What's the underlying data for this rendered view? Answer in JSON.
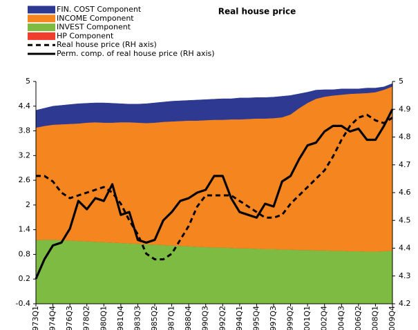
{
  "chart_data": {
    "type": "area",
    "title": "Real house price",
    "categories": [
      "1973Q1",
      null,
      "1974Q4",
      null,
      "1976Q3",
      null,
      "1978Q2",
      null,
      "1980Q1",
      null,
      "1981Q4",
      null,
      "1983Q3",
      null,
      "1985Q2",
      null,
      "1987Q1",
      null,
      "1988Q4",
      null,
      "1990Q3",
      null,
      "1992Q2",
      null,
      "1994Q1",
      null,
      "1995Q4",
      null,
      "1997Q3",
      null,
      "1999Q2",
      null,
      "2001Q1",
      null,
      "2002Q4",
      null,
      "2004Q3",
      null,
      "2006Q2",
      null,
      "2008Q1",
      null,
      "2009Q4"
    ],
    "ylim": [
      -0.4,
      5.0
    ],
    "yticks": [
      -0.4,
      0.2,
      0.8,
      1.4,
      2.0,
      2.6,
      3.2,
      3.8,
      4.4,
      5.0
    ],
    "y2lim": [
      4.2,
      5.0
    ],
    "y2ticks": [
      4.2,
      4.3,
      4.4,
      4.5,
      4.6,
      4.7,
      4.8,
      4.9,
      5.0
    ],
    "series": [
      {
        "name": "FIN. COST Component",
        "color": "#2e3a92",
        "values": [
          0.42,
          0.43,
          0.45,
          0.46,
          0.47,
          0.48,
          0.47,
          0.47,
          0.48,
          0.47,
          0.45,
          0.44,
          0.45,
          0.47,
          0.48,
          0.48,
          0.49,
          0.49,
          0.49,
          0.5,
          0.5,
          0.5,
          0.51,
          0.5,
          0.52,
          0.51,
          0.51,
          0.51,
          0.51,
          0.51,
          0.46,
          0.35,
          0.26,
          0.21,
          0.17,
          0.14,
          0.14,
          0.12,
          0.11,
          0.12,
          0.1,
          0.07,
          0.07
        ]
      },
      {
        "name": "INCOME Component",
        "color": "#f5861f",
        "values": [
          2.73,
          2.76,
          2.79,
          2.81,
          2.83,
          2.85,
          2.88,
          2.9,
          2.9,
          2.91,
          2.93,
          2.94,
          2.94,
          2.94,
          2.96,
          2.99,
          3.01,
          3.03,
          3.05,
          3.06,
          3.08,
          3.1,
          3.1,
          3.12,
          3.13,
          3.14,
          3.16,
          3.17,
          3.18,
          3.21,
          3.28,
          3.44,
          3.57,
          3.68,
          3.73,
          3.77,
          3.79,
          3.82,
          3.83,
          3.85,
          3.87,
          3.92,
          3.99
        ]
      },
      {
        "name": "INVEST Component",
        "color": "#7dbb42",
        "values": [
          1.15,
          1.16,
          1.16,
          1.15,
          1.14,
          1.13,
          1.12,
          1.11,
          1.1,
          1.09,
          1.08,
          1.07,
          1.06,
          1.05,
          1.04,
          1.03,
          1.02,
          1.01,
          1.0,
          0.99,
          0.98,
          0.97,
          0.97,
          0.96,
          0.95,
          0.95,
          0.94,
          0.93,
          0.93,
          0.92,
          0.92,
          0.91,
          0.91,
          0.9,
          0.9,
          0.89,
          0.89,
          0.88,
          0.88,
          0.87,
          0.87,
          0.88,
          0.89
        ]
      },
      {
        "name": "HP Component",
        "color": "#ef3e2d",
        "values": [
          0,
          0,
          0,
          0,
          0,
          0,
          0,
          0,
          0,
          0,
          0,
          0,
          0,
          0,
          0,
          0,
          0,
          0,
          0,
          0,
          0,
          0,
          0,
          0,
          0,
          0,
          0,
          0,
          0,
          0,
          0,
          0,
          0,
          0,
          0,
          0,
          0,
          0,
          0,
          0,
          0,
          0,
          0
        ]
      },
      {
        "name": "Real house price (RH axis)",
        "color": "#000000",
        "axis": "y2",
        "dashed": true,
        "values": [
          4.66,
          4.66,
          4.64,
          4.6,
          4.58,
          4.59,
          4.6,
          4.61,
          4.62,
          4.6,
          4.56,
          4.5,
          4.45,
          4.38,
          4.36,
          4.36,
          4.38,
          4.43,
          4.48,
          4.55,
          4.59,
          4.59,
          4.59,
          4.59,
          4.57,
          4.55,
          4.53,
          4.51,
          4.51,
          4.52,
          4.56,
          4.59,
          4.62,
          4.65,
          4.68,
          4.73,
          4.79,
          4.84,
          4.87,
          4.88,
          4.86,
          4.85,
          4.87
        ]
      },
      {
        "name": "Perm. comp. of real house price (RH axis)",
        "color": "#000000",
        "axis": "y2",
        "values": [
          4.29,
          4.36,
          4.41,
          4.42,
          4.47,
          4.57,
          4.54,
          4.58,
          4.57,
          4.63,
          4.52,
          4.53,
          4.43,
          4.42,
          4.43,
          4.5,
          4.53,
          4.57,
          4.58,
          4.6,
          4.61,
          4.66,
          4.66,
          4.58,
          4.53,
          4.52,
          4.51,
          4.56,
          4.55,
          4.64,
          4.66,
          4.72,
          4.77,
          4.78,
          4.82,
          4.84,
          4.84,
          4.82,
          4.83,
          4.79,
          4.79,
          4.84,
          4.9
        ]
      }
    ]
  }
}
